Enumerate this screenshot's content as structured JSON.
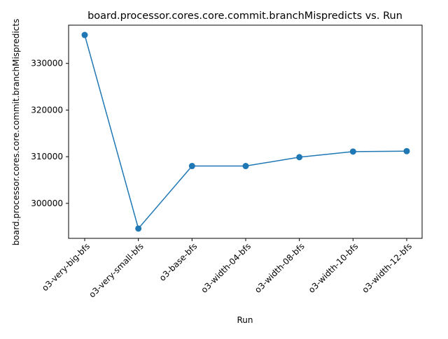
{
  "chart_data": {
    "type": "line",
    "title": "board.processor.cores.core.commit.branchMispredicts vs. Run",
    "xlabel": "Run",
    "ylabel": "board.processor.cores.core.commit.branchMispredicts",
    "categories": [
      "o3-very-big-bfs",
      "o3-very-small-bfs",
      "o3-base-bfs",
      "o3-width-04-bfs",
      "o3-width-08-bfs",
      "o3-width-10-bfs",
      "o3-width-12-bfs"
    ],
    "series": [
      {
        "values": [
          336100,
          294600,
          308000,
          308000,
          309900,
          311100,
          311200
        ],
        "color": "#1f77b4",
        "marker": "circle"
      }
    ],
    "yticks": [
      300000,
      310000,
      320000,
      330000
    ],
    "ylim": [
      292500,
      338200
    ],
    "grid": false
  }
}
